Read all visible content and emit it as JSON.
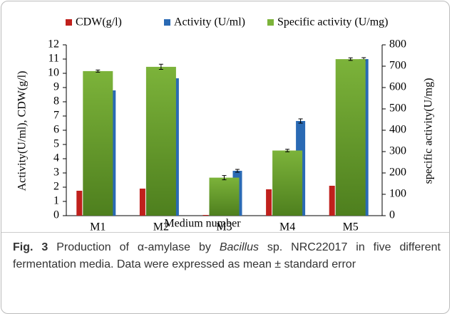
{
  "chart_data": {
    "type": "bar",
    "categories": [
      "M1",
      "M2",
      "M3",
      "M4",
      "M5"
    ],
    "series": [
      {
        "name": "CDW(g/l)",
        "color": "#c0201c",
        "values": [
          1.75,
          1.9,
          0.05,
          1.85,
          2.1
        ]
      },
      {
        "name": "Activity (U/ml)",
        "color": "#2a6ab4",
        "values": [
          8.8,
          9.65,
          3.15,
          6.65,
          11.0
        ],
        "errors": [
          null,
          null,
          0.1,
          0.15,
          0.1
        ]
      },
      {
        "name": "Specific activity (U/mg)",
        "color": "#7cb33a",
        "axis": "y2",
        "values": [
          677,
          697,
          178,
          305,
          733
        ],
        "errors": [
          5,
          12,
          10,
          6,
          6
        ]
      }
    ],
    "ylabel": "Activity(U/ml), CDW(g/l)",
    "y2label": "specific activity(U/mg)",
    "xlabel": "Medium number",
    "ylim": [
      0,
      12
    ],
    "yticks": [
      0,
      1,
      2,
      3,
      4,
      5,
      6,
      7,
      8,
      9,
      10,
      11,
      12
    ],
    "y2lim": [
      0,
      800
    ],
    "y2ticks": [
      0,
      100,
      200,
      300,
      400,
      500,
      600,
      700,
      800
    ],
    "legend": "top"
  },
  "caption": {
    "label": "Fig. 3",
    "text1": "Production of α-amylase by",
    "italic": "Bacillus",
    "text2": "sp. NRC22017 in five different fermentation media. Data were expressed as mean ± standard error"
  }
}
